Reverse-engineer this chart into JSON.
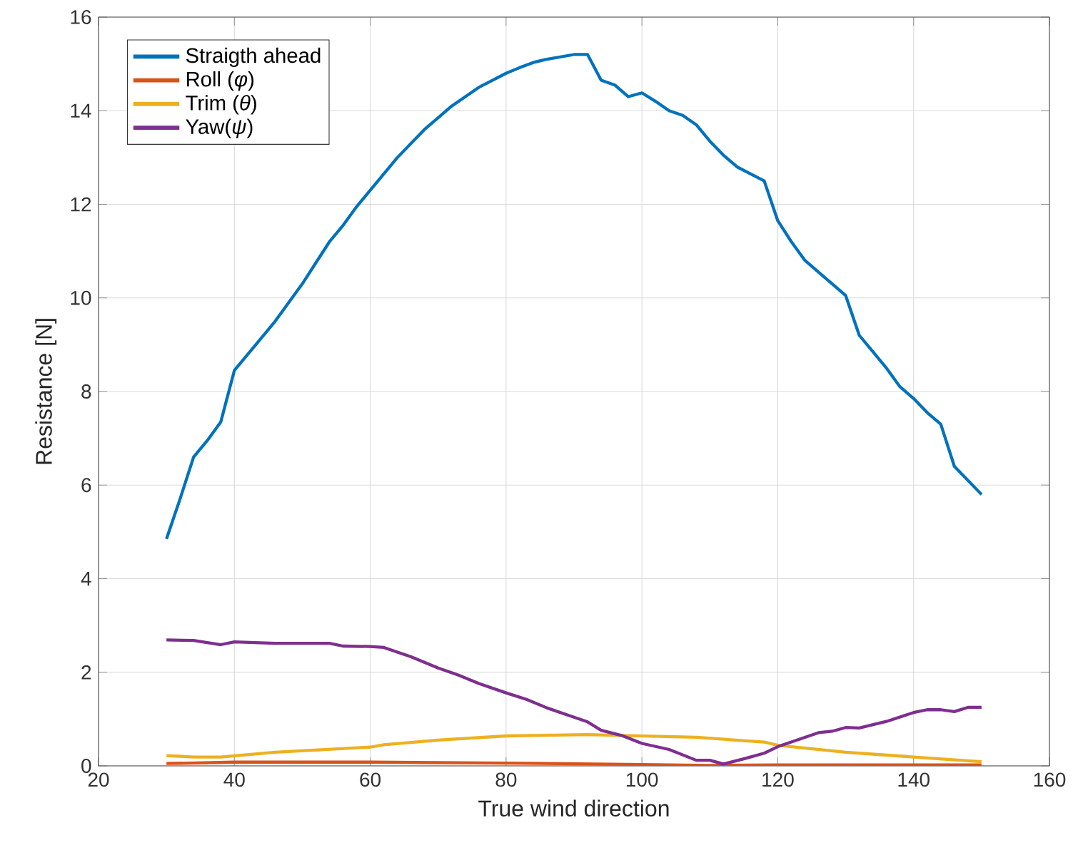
{
  "chart_data": {
    "type": "line",
    "xlabel": "True wind direction",
    "ylabel": "Resistance [N]",
    "xlim": [
      20,
      160
    ],
    "ylim": [
      0,
      16
    ],
    "xticks": [
      20,
      40,
      60,
      80,
      100,
      120,
      140,
      160
    ],
    "yticks": [
      0,
      2,
      4,
      6,
      8,
      10,
      12,
      14,
      16
    ],
    "grid": true,
    "legend": "top left",
    "line_style": "solid",
    "marker": "none",
    "series": [
      {
        "name": "Straigth ahead",
        "color": "#0072bd",
        "x": [
          30,
          32,
          34,
          36,
          38,
          40,
          42,
          44,
          46,
          48,
          50,
          52,
          54,
          56,
          58,
          60,
          62,
          64,
          66,
          68,
          70,
          72,
          74,
          76,
          78,
          80,
          82,
          84,
          86,
          88,
          90,
          92,
          94,
          96,
          98,
          100,
          102,
          104,
          106,
          108,
          110,
          112,
          114,
          116,
          118,
          120,
          122,
          124,
          126,
          128,
          130,
          132,
          134,
          136,
          138,
          140,
          142,
          144,
          146,
          148,
          150
        ],
        "values": [
          4.85,
          5.7,
          6.6,
          6.95,
          7.35,
          8.45,
          8.8,
          9.15,
          9.5,
          9.9,
          10.3,
          10.75,
          11.2,
          11.55,
          11.95,
          12.3,
          12.65,
          13.0,
          13.3,
          13.6,
          13.85,
          14.1,
          14.3,
          14.5,
          14.65,
          14.8,
          14.92,
          15.03,
          15.1,
          15.15,
          15.2,
          15.2,
          14.65,
          14.55,
          14.3,
          14.38,
          14.2,
          14.0,
          13.9,
          13.7,
          13.35,
          13.05,
          12.8,
          12.65,
          12.5,
          11.65,
          11.2,
          10.8,
          10.55,
          10.3,
          10.05,
          9.2,
          8.85,
          8.5,
          8.1,
          7.85,
          7.55,
          7.3,
          6.4,
          6.1,
          5.8
        ]
      },
      {
        "name": "Roll (*φ*)",
        "color": "#d95319",
        "x": [
          30,
          40,
          60,
          80,
          100,
          110,
          120,
          150
        ],
        "values": [
          0.05,
          0.08,
          0.08,
          0.06,
          0.03,
          0.01,
          0.02,
          0.02
        ]
      },
      {
        "name": "Trim (*θ*)",
        "color": "#edb120",
        "x": [
          30,
          34,
          38,
          46,
          60,
          62,
          70,
          80,
          92,
          97,
          108,
          118,
          120,
          130,
          140,
          148,
          150
        ],
        "values": [
          0.22,
          0.19,
          0.19,
          0.29,
          0.4,
          0.45,
          0.55,
          0.64,
          0.67,
          0.65,
          0.61,
          0.51,
          0.44,
          0.29,
          0.19,
          0.11,
          0.09
        ]
      },
      {
        "name": "Yaw(*ψ*)",
        "color": "#7e2f8e",
        "x": [
          30,
          34,
          38,
          40,
          46,
          54,
          56,
          60,
          62,
          66,
          70,
          73,
          76,
          80,
          83,
          86,
          89,
          92,
          94,
          97,
          100,
          104,
          108,
          110,
          112,
          115,
          118,
          120,
          123,
          126,
          128,
          130,
          132,
          136,
          140,
          142,
          144,
          146,
          148,
          150
        ],
        "values": [
          2.69,
          2.68,
          2.59,
          2.65,
          2.62,
          2.62,
          2.56,
          2.55,
          2.53,
          2.33,
          2.09,
          1.94,
          1.76,
          1.56,
          1.42,
          1.24,
          1.09,
          0.94,
          0.76,
          0.65,
          0.48,
          0.35,
          0.12,
          0.12,
          0.04,
          0.15,
          0.27,
          0.41,
          0.56,
          0.71,
          0.74,
          0.82,
          0.81,
          0.95,
          1.14,
          1.2,
          1.2,
          1.16,
          1.25,
          1.25
        ]
      }
    ]
  }
}
